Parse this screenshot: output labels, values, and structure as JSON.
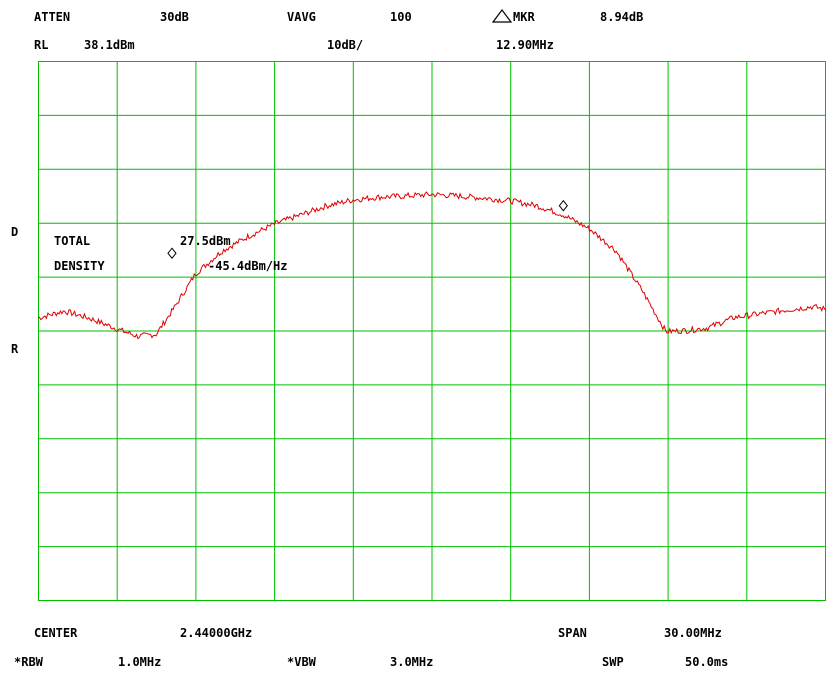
{
  "header": {
    "atten_label": "ATTEN",
    "atten_value": "30dB",
    "vavg_label": "VAVG",
    "vavg_value": "100",
    "mkr_label": "MKR",
    "mkr_value": "8.94dB",
    "rl_label": "RL",
    "rl_value": "38.1dBm",
    "scale_value": "10dB/",
    "mkr_freq": "12.90MHz"
  },
  "side": {
    "d_label": "D",
    "r_label": "R"
  },
  "overlay": {
    "total_label": "TOTAL",
    "total_value": "27.5dBm",
    "density_label": "DENSITY",
    "density_value": "-45.4dBm/Hz"
  },
  "footer": {
    "center_label": "CENTER",
    "center_value": "2.44000GHz",
    "span_label": "SPAN",
    "span_value": "30.00MHz",
    "rbw_label": "*RBW",
    "rbw_value": "1.0MHz",
    "vbw_label": "*VBW",
    "vbw_value": "3.0MHz",
    "swp_label": "SWP",
    "swp_value": "50.0ms"
  },
  "colors": {
    "grid": "#00c000",
    "trace": "#e00000",
    "text": "#000000"
  },
  "chart_data": {
    "type": "line",
    "grid": true,
    "divisions_x": 10,
    "divisions_y": 10,
    "x_range": [
      -15,
      15
    ],
    "x_unit": "MHz offset from center",
    "y_range": [
      -61.9,
      38.1
    ],
    "y_unit": "dBm",
    "series": [
      {
        "x": [
          -15,
          -14,
          -13,
          -12,
          -11.2,
          -10.5,
          -9.8,
          -9,
          -8,
          -7,
          -6,
          -5,
          -4,
          -3,
          -2,
          -1,
          0,
          1,
          2,
          3,
          4,
          5,
          5.5,
          6,
          7,
          8,
          8.9,
          9.7,
          10.5,
          11.5,
          12.5,
          13.5,
          14.5,
          15
        ],
        "y": [
          -9.5,
          -8.2,
          -9.6,
          -11.5,
          -12.9,
          -12.5,
          -7.5,
          -1.3,
          2.9,
          5.6,
          7.9,
          9.6,
          11.3,
          12.4,
          12.9,
          13.1,
          13.4,
          13.1,
          12.7,
          12.2,
          11.3,
          9.6,
          8.3,
          7.0,
          3.0,
          -4.4,
          -12.0,
          -11.8,
          -11.3,
          -9.4,
          -8.7,
          -8.0,
          -7.4,
          -7.9
        ]
      }
    ]
  }
}
